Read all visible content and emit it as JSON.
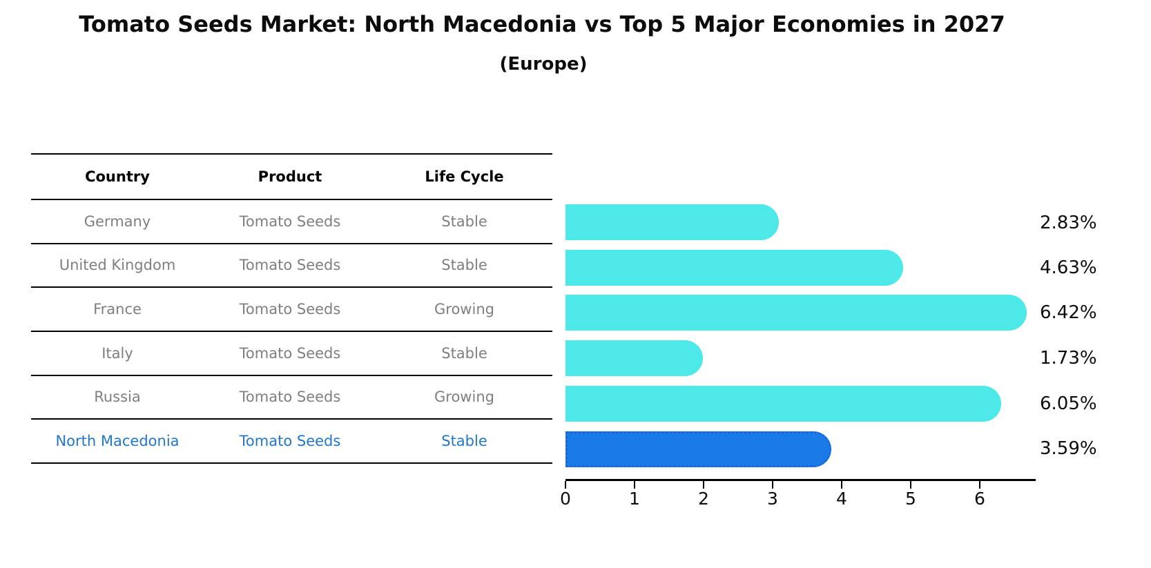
{
  "header": {
    "title": "Tomato Seeds Market: North Macedonia vs Top 5 Major Economies in 2027",
    "subtitle": "(Europe)"
  },
  "table": {
    "columns": [
      "Country",
      "Product",
      "Life Cycle"
    ],
    "rows": [
      {
        "country": "Germany",
        "product": "Tomato Seeds",
        "life_cycle": "Stable",
        "value_label": "2.83%",
        "highlight": false
      },
      {
        "country": "United Kingdom",
        "product": "Tomato Seeds",
        "life_cycle": "Stable",
        "value_label": "4.63%",
        "highlight": false
      },
      {
        "country": "France",
        "product": "Tomato Seeds",
        "life_cycle": "Growing",
        "value_label": "6.42%",
        "highlight": false
      },
      {
        "country": "Italy",
        "product": "Tomato Seeds",
        "life_cycle": "Stable",
        "value_label": "1.73%",
        "highlight": false
      },
      {
        "country": "Russia",
        "product": "Tomato Seeds",
        "life_cycle": "Growing",
        "value_label": "6.05%",
        "highlight": false
      },
      {
        "country": "North Macedonia",
        "product": "Tomato Seeds",
        "life_cycle": "Stable",
        "value_label": "3.59%",
        "highlight": true
      }
    ]
  },
  "chart_data": {
    "type": "bar",
    "orientation": "horizontal",
    "title": "Tomato Seeds Market: North Macedonia vs Top 5 Major Economies in 2027 (Europe)",
    "categories": [
      "Germany",
      "United Kingdom",
      "France",
      "Italy",
      "Russia",
      "North Macedonia"
    ],
    "values": [
      2.83,
      4.63,
      6.42,
      1.73,
      6.05,
      3.59
    ],
    "value_labels": [
      "2.83%",
      "4.63%",
      "6.42%",
      "1.73%",
      "6.05%",
      "3.59%"
    ],
    "x_ticks": [
      "0",
      "1",
      "2",
      "3",
      "4",
      "5",
      "6"
    ],
    "xlim": [
      0,
      6.8
    ],
    "grid": false,
    "legend": false,
    "bar_color": "#4DE8E8",
    "highlight_index": 5,
    "highlight_bar_color": "#1A7AE8",
    "highlight_text_color": "#2277C8"
  }
}
